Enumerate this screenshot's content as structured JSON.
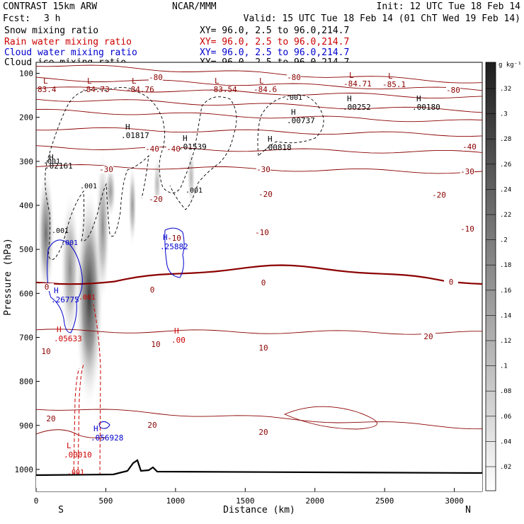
{
  "header": {
    "model": "CONTRAST 15km ARW",
    "org": "NCAR/MMM",
    "init": "Init: 12 UTC Tue 18 Feb 14",
    "fcst_label": "Fcst:",
    "fcst_value": "3 h",
    "valid": "Valid: 15 UTC Tue 18 Feb 14 (01 ChT Wed 19 Feb 14)"
  },
  "legend": [
    {
      "field": "Snow mixing ratio",
      "color": "#000000",
      "xy": "XY=  96.0,  2.5 to  96.0,214.7"
    },
    {
      "field": "Rain water mixing ratio",
      "color": "#cc0000",
      "xy": "XY=  96.0,  2.5 to  96.0,214.7"
    },
    {
      "field": "Cloud water mixing ratio",
      "color": "#0000cc",
      "xy": "XY=  96.0,  2.5 to  96.0,214.7"
    },
    {
      "field": "Cloud ice mixing ratio",
      "color": "#000000",
      "xy": "XY=  96.0,  2.5 to  96.0,214.7"
    }
  ],
  "chart_data": {
    "type": "cross-section",
    "title": "Vertical cross section: temperature isotherms and hydrometeor mixing ratios",
    "xlabel": "Distance (km)",
    "ylabel": "Pressure (hPa)",
    "xlim": [
      0,
      3200
    ],
    "ylim": [
      1050,
      75
    ],
    "x_ticks": [
      0,
      500,
      1000,
      1500,
      2000,
      2500,
      3000
    ],
    "x_tick_labels": [
      "0",
      "500",
      "1000",
      "1500",
      "2000",
      "2500",
      "3000"
    ],
    "y_ticks": [
      100,
      200,
      300,
      400,
      500,
      600,
      700,
      800,
      900,
      1000
    ],
    "y_tick_labels": [
      "100",
      "200",
      "300",
      "400",
      "500",
      "600",
      "700",
      "800",
      "900",
      "1000"
    ],
    "endpoints": {
      "left": "S",
      "right": "N"
    },
    "isotherms": [
      {
        "value": -80,
        "p_left": 80,
        "p_right": 120
      },
      {
        "value": -70,
        "p_left": 112,
        "p_right": 138
      },
      {
        "value": -60,
        "p_left": 133,
        "p_right": 155
      },
      {
        "value": -50,
        "p_left": 158,
        "p_right": 185
      },
      {
        "value": -40,
        "p_left": 185,
        "p_right": 210
      },
      {
        "value": -30,
        "p_left": 225,
        "p_right": 240
      },
      {
        "value": -20,
        "p_left": 268,
        "p_right": 280
      },
      {
        "value": -10,
        "p_left": 310,
        "p_right": 325
      },
      {
        "value": 0,
        "p_left": 570,
        "p_right": 575
      },
      {
        "value": 10,
        "p_left": 685,
        "p_right": 690
      },
      {
        "value": 20,
        "p_left": 860,
        "p_right": 905
      }
    ],
    "isotherm_labels": [
      "-80",
      "-80",
      "-80",
      "-40",
      "-40",
      "-40",
      "-30",
      "-30",
      "-30",
      "-20",
      "-20",
      "-20",
      "-10",
      "-10",
      "-10",
      "0",
      "0",
      "0",
      "0",
      "10",
      "10",
      "10",
      "20",
      "20",
      "20",
      "20"
    ],
    "temperature_extrema": [
      {
        "kind": "L",
        "value": "83.4"
      },
      {
        "kind": "L",
        "value": "-84.73"
      },
      {
        "kind": "L",
        "value": "-84.76"
      },
      {
        "kind": "L",
        "value": "-83.54"
      },
      {
        "kind": "L",
        "value": "-84.6"
      },
      {
        "kind": "L",
        "value": "-84.71"
      },
      {
        "kind": "L",
        "value": "-85.1"
      }
    ],
    "cloud_ice_extrema": [
      {
        "kind": "H",
        "value": ".02161"
      },
      {
        "kind": "H",
        "value": ".01817"
      },
      {
        "kind": "H",
        "value": ".01539"
      },
      {
        "kind": "H",
        "value": ".00818"
      },
      {
        "kind": "H",
        "value": ".00737"
      },
      {
        "kind": "H",
        "value": ".00252"
      },
      {
        "kind": "H",
        "value": ".00180"
      }
    ],
    "cloud_ice_contour_labels": [
      ".001",
      ".001",
      ".001",
      ".001",
      ".001"
    ],
    "cloud_water_extrema": [
      {
        "kind": "H",
        "value": ".26775"
      },
      {
        "kind": "H",
        "value": ".25882"
      },
      {
        "kind": "H",
        "value": ".056928"
      }
    ],
    "cloud_water_contour_labels": [
      ".001"
    ],
    "rain_water_extrema": [
      {
        "kind": "H",
        "value": ".05633"
      },
      {
        "kind": "H",
        "value": ".00"
      },
      {
        "kind": "L",
        "value": ".00010"
      }
    ],
    "rain_water_contour_labels": [
      ".001",
      ".001"
    ],
    "snow": {
      "max_mixing_ratio_g_per_kg": 0.3,
      "cores_km": [
        120,
        300,
        390,
        700,
        1100
      ]
    },
    "colorbar": {
      "unit": "g kg⁻¹",
      "levels": [
        ".32",
        ".3",
        ".28",
        ".26",
        ".24",
        ".22",
        ".2",
        ".18",
        ".16",
        ".14",
        ".12",
        ".1",
        ".08",
        ".06",
        ".04",
        ".02"
      ]
    }
  }
}
